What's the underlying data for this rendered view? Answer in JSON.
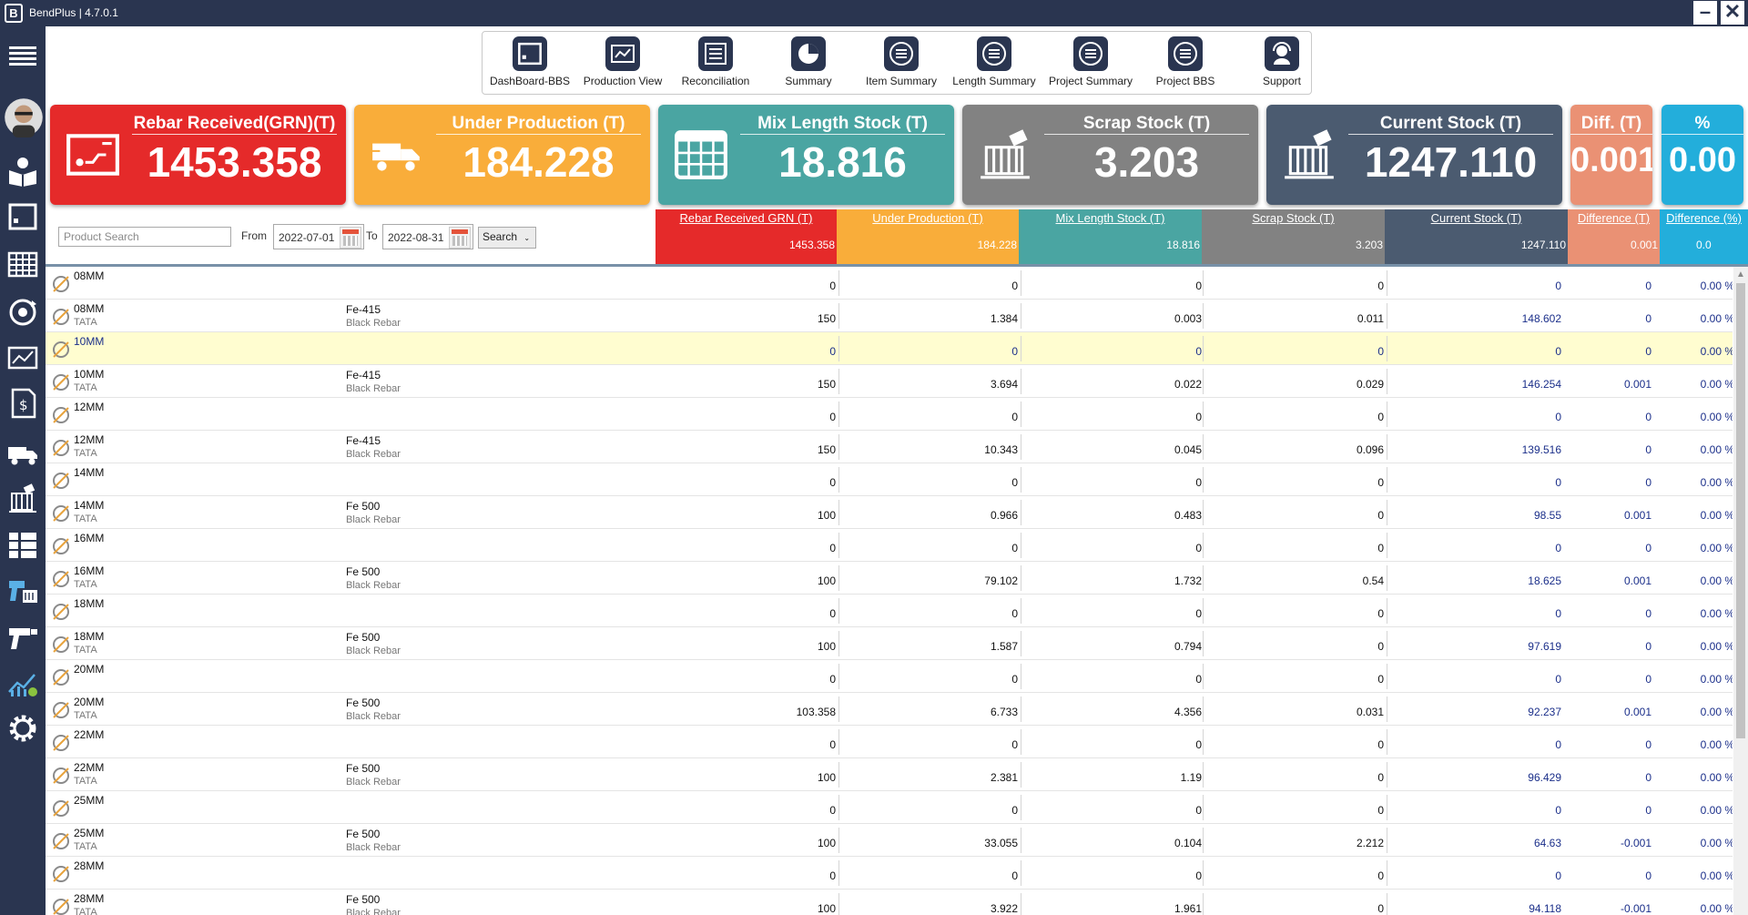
{
  "titlebar": {
    "app": "BendPlus",
    "version": "4.7.0.1",
    "logo_text": "B"
  },
  "sidebar": [
    {
      "name": "menu-icon"
    },
    {
      "name": "avatar"
    },
    {
      "name": "reader-icon"
    },
    {
      "name": "dashboard-icon"
    },
    {
      "name": "table-icon"
    },
    {
      "name": "settings-cycle-icon"
    },
    {
      "name": "chart-card-icon"
    },
    {
      "name": "invoice-icon"
    },
    {
      "name": "truck-icon"
    },
    {
      "name": "stock-icon"
    },
    {
      "name": "list-icon"
    },
    {
      "name": "scanner-icon"
    },
    {
      "name": "gun-icon"
    },
    {
      "name": "analytics-icon"
    },
    {
      "name": "gear-icon"
    }
  ],
  "toolbar": [
    {
      "label": "DashBoard-BBS",
      "icon": "dashboard-icon"
    },
    {
      "label": "Production View",
      "icon": "production-icon"
    },
    {
      "label": "Reconciliation",
      "icon": "reconciliation-icon"
    },
    {
      "label": "Summary",
      "icon": "pie-icon"
    },
    {
      "label": "Item Summary",
      "icon": "list-circle-icon"
    },
    {
      "label": "Length Summary",
      "icon": "list-circle-icon"
    },
    {
      "label": "Project Summary",
      "icon": "list-circle-icon"
    },
    {
      "label": "Project BBS",
      "icon": "list-circle-icon"
    },
    {
      "label": "Support",
      "icon": "support-icon"
    }
  ],
  "cards": [
    {
      "title": "Rebar Received(GRN)(T)",
      "value": "1453.358",
      "color": "#e52a2a",
      "icon": "receipt-icon"
    },
    {
      "title": "Under Production (T)",
      "value": "184.228",
      "color": "#f9ad3a",
      "icon": "truck-icon"
    },
    {
      "title": "Mix Length Stock (T)",
      "value": "18.816",
      "color": "#4aa5a2",
      "icon": "grid-icon"
    },
    {
      "title": "Scrap Stock (T)",
      "value": "3.203",
      "color": "#828282",
      "icon": "scrap-icon"
    },
    {
      "title": "Current Stock (T)",
      "value": "1247.110",
      "color": "#4b5b70",
      "icon": "stock-icon"
    },
    {
      "title": "Diff. (T)",
      "value": "0.001",
      "color": "#ea9174",
      "icon": ""
    },
    {
      "title": "%",
      "value": "0.00",
      "color": "#23aedb",
      "icon": ""
    }
  ],
  "filter": {
    "search_placeholder": "Product Search",
    "from_label": "From",
    "from_value": "2022-07-01",
    "to_label": "To",
    "to_value": "2022-08-31",
    "search_button": "Search"
  },
  "summary": [
    {
      "header": "Rebar Received GRN (T)",
      "value": "1453.358",
      "color": "#e52a2a"
    },
    {
      "header": "Under Production (T)",
      "value": "184.228",
      "color": "#f9ad3a"
    },
    {
      "header": "Mix Length Stock (T)",
      "value": "18.816",
      "color": "#4aa5a2"
    },
    {
      "header": "Scrap Stock (T)",
      "value": "3.203",
      "color": "#828282"
    },
    {
      "header": "Current Stock (T)",
      "value": "1247.110",
      "color": "#4b5b70"
    },
    {
      "header": "Difference (T)",
      "value": "0.001",
      "color": "#ea9174"
    },
    {
      "header": "Difference (%)",
      "value": "0.0",
      "color": "#23aedb"
    }
  ],
  "rows": [
    {
      "size": "08MM",
      "brand": "",
      "grade": "",
      "type": "",
      "grn": "0",
      "up": "0",
      "mix": "0",
      "scrap": "0",
      "cur": "0",
      "diff": "0",
      "pct": "0.00 %"
    },
    {
      "size": "08MM",
      "brand": "TATA",
      "grade": "Fe-415",
      "type": "Black Rebar",
      "grn": "150",
      "up": "1.384",
      "mix": "0.003",
      "scrap": "0.011",
      "cur": "148.602",
      "diff": "0",
      "pct": "0.00 %"
    },
    {
      "size": "10MM",
      "brand": "",
      "grade": "",
      "type": "",
      "grn": "0",
      "up": "0",
      "mix": "0",
      "scrap": "0",
      "cur": "0",
      "diff": "0",
      "pct": "0.00 %",
      "highlight": true
    },
    {
      "size": "10MM",
      "brand": "TATA",
      "grade": "Fe-415",
      "type": "Black Rebar",
      "grn": "150",
      "up": "3.694",
      "mix": "0.022",
      "scrap": "0.029",
      "cur": "146.254",
      "diff": "0.001",
      "pct": "0.00 %"
    },
    {
      "size": "12MM",
      "brand": "",
      "grade": "",
      "type": "",
      "grn": "0",
      "up": "0",
      "mix": "0",
      "scrap": "0",
      "cur": "0",
      "diff": "0",
      "pct": "0.00 %"
    },
    {
      "size": "12MM",
      "brand": "TATA",
      "grade": "Fe-415",
      "type": "Black Rebar",
      "grn": "150",
      "up": "10.343",
      "mix": "0.045",
      "scrap": "0.096",
      "cur": "139.516",
      "diff": "0",
      "pct": "0.00 %"
    },
    {
      "size": "14MM",
      "brand": "",
      "grade": "",
      "type": "",
      "grn": "0",
      "up": "0",
      "mix": "0",
      "scrap": "0",
      "cur": "0",
      "diff": "0",
      "pct": "0.00 %"
    },
    {
      "size": "14MM",
      "brand": "TATA",
      "grade": "Fe 500",
      "type": "Black Rebar",
      "grn": "100",
      "up": "0.966",
      "mix": "0.483",
      "scrap": "0",
      "cur": "98.55",
      "diff": "0.001",
      "pct": "0.00 %"
    },
    {
      "size": "16MM",
      "brand": "",
      "grade": "",
      "type": "",
      "grn": "0",
      "up": "0",
      "mix": "0",
      "scrap": "0",
      "cur": "0",
      "diff": "0",
      "pct": "0.00 %"
    },
    {
      "size": "16MM",
      "brand": "TATA",
      "grade": "Fe 500",
      "type": "Black Rebar",
      "grn": "100",
      "up": "79.102",
      "mix": "1.732",
      "scrap": "0.54",
      "cur": "18.625",
      "diff": "0.001",
      "pct": "0.00 %"
    },
    {
      "size": "18MM",
      "brand": "",
      "grade": "",
      "type": "",
      "grn": "0",
      "up": "0",
      "mix": "0",
      "scrap": "0",
      "cur": "0",
      "diff": "0",
      "pct": "0.00 %"
    },
    {
      "size": "18MM",
      "brand": "TATA",
      "grade": "Fe 500",
      "type": "Black Rebar",
      "grn": "100",
      "up": "1.587",
      "mix": "0.794",
      "scrap": "0",
      "cur": "97.619",
      "diff": "0",
      "pct": "0.00 %"
    },
    {
      "size": "20MM",
      "brand": "",
      "grade": "",
      "type": "",
      "grn": "0",
      "up": "0",
      "mix": "0",
      "scrap": "0",
      "cur": "0",
      "diff": "0",
      "pct": "0.00 %"
    },
    {
      "size": "20MM",
      "brand": "TATA",
      "grade": "Fe 500",
      "type": "Black Rebar",
      "grn": "103.358",
      "up": "6.733",
      "mix": "4.356",
      "scrap": "0.031",
      "cur": "92.237",
      "diff": "0.001",
      "pct": "0.00 %"
    },
    {
      "size": "22MM",
      "brand": "",
      "grade": "",
      "type": "",
      "grn": "0",
      "up": "0",
      "mix": "0",
      "scrap": "0",
      "cur": "0",
      "diff": "0",
      "pct": "0.00 %"
    },
    {
      "size": "22MM",
      "brand": "TATA",
      "grade": "Fe 500",
      "type": "Black Rebar",
      "grn": "100",
      "up": "2.381",
      "mix": "1.19",
      "scrap": "0",
      "cur": "96.429",
      "diff": "0",
      "pct": "0.00 %"
    },
    {
      "size": "25MM",
      "brand": "",
      "grade": "",
      "type": "",
      "grn": "0",
      "up": "0",
      "mix": "0",
      "scrap": "0",
      "cur": "0",
      "diff": "0",
      "pct": "0.00 %"
    },
    {
      "size": "25MM",
      "brand": "TATA",
      "grade": "Fe 500",
      "type": "Black Rebar",
      "grn": "100",
      "up": "33.055",
      "mix": "0.104",
      "scrap": "2.212",
      "cur": "64.63",
      "diff": "-0.001",
      "pct": "0.00 %"
    },
    {
      "size": "28MM",
      "brand": "",
      "grade": "",
      "type": "",
      "grn": "0",
      "up": "0",
      "mix": "0",
      "scrap": "0",
      "cur": "0",
      "diff": "0",
      "pct": "0.00 %"
    },
    {
      "size": "28MM",
      "brand": "TATA",
      "grade": "Fe 500",
      "type": "Black Rebar",
      "grn": "100",
      "up": "3.922",
      "mix": "1.961",
      "scrap": "0",
      "cur": "94.118",
      "diff": "-0.001",
      "pct": "0.00 %"
    }
  ]
}
